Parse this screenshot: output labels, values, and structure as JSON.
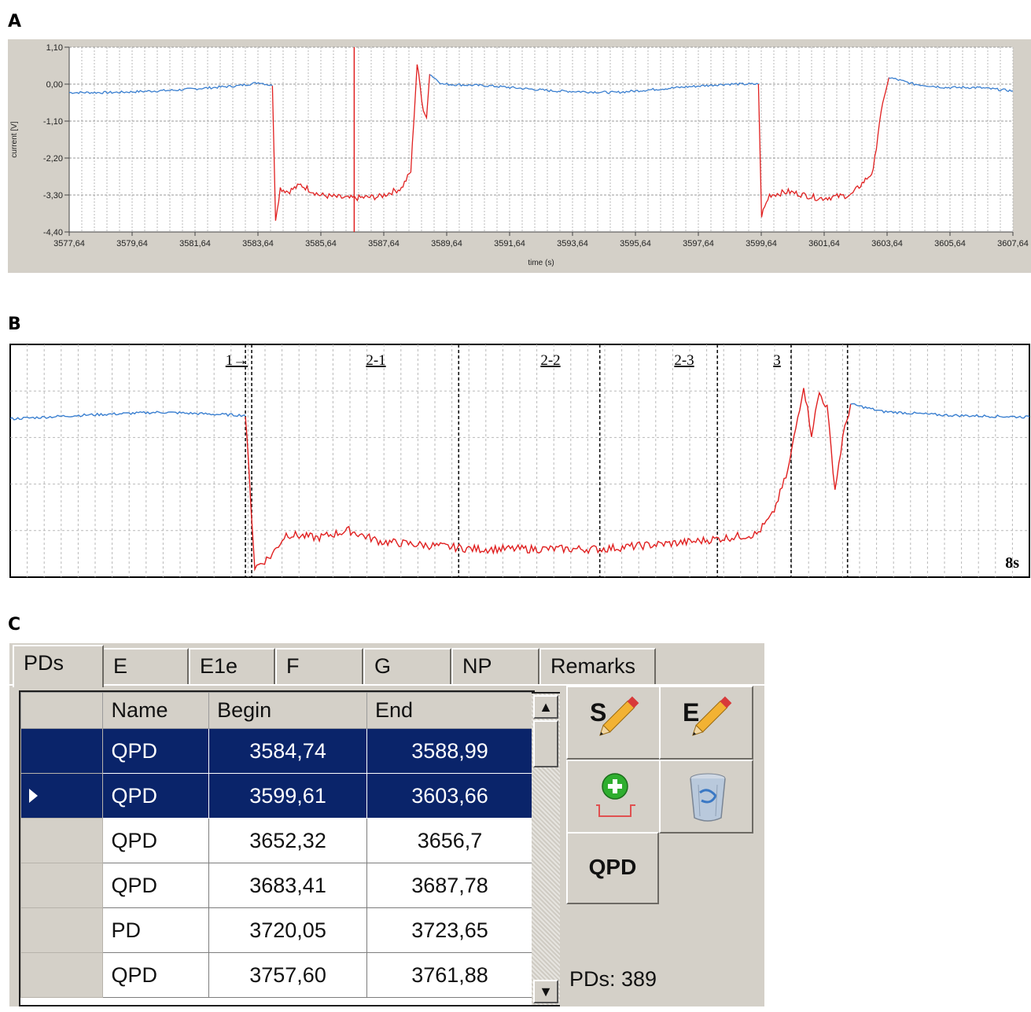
{
  "panel_labels": {
    "a": "A",
    "b": "B",
    "c": "C"
  },
  "chart_data": [
    {
      "type": "line",
      "panel": "A",
      "xlabel": "time (s)",
      "ylabel": "current [V]",
      "xlim": [
        3577.64,
        3607.64
      ],
      "ylim": [
        -4.4,
        1.1
      ],
      "x_ticks": [
        "3577,64",
        "3579,64",
        "3581,64",
        "3583,64",
        "3585,64",
        "3587,64",
        "3589,64",
        "3591,64",
        "3593,64",
        "3595,64",
        "3597,64",
        "3599,64",
        "3601,64",
        "3603,64",
        "3605,64",
        "3607,64"
      ],
      "y_ticks": [
        "1,10",
        "0,00",
        "-1,10",
        "-2,20",
        "-3,30",
        "-4,40"
      ],
      "grid": true,
      "colors": {
        "baseline": "#3a7fd0",
        "pd": "#e02020",
        "marker": "#e02020"
      },
      "marker_x": 3586.7,
      "series": [
        {
          "color": "baseline",
          "points": [
            [
              3577.64,
              -0.25
            ],
            [
              3579,
              -0.25
            ],
            [
              3581,
              -0.18
            ],
            [
              3583,
              -0.05
            ],
            [
              3583.7,
              0.05
            ],
            [
              3584.1,
              -0.05
            ]
          ]
        },
        {
          "color": "pd",
          "points": [
            [
              3584.1,
              -0.05
            ],
            [
              3584.2,
              -4.0
            ],
            [
              3584.35,
              -3.1
            ],
            [
              3584.6,
              -3.2
            ],
            [
              3585,
              -3.0
            ],
            [
              3585.6,
              -3.3
            ],
            [
              3586.5,
              -3.4
            ],
            [
              3587.5,
              -3.35
            ],
            [
              3588.2,
              -3.1
            ],
            [
              3588.5,
              -2.6
            ],
            [
              3588.7,
              0.6
            ],
            [
              3588.9,
              -0.8
            ],
            [
              3589.0,
              -1.0
            ],
            [
              3589.1,
              0.3
            ]
          ]
        },
        {
          "color": "baseline",
          "points": [
            [
              3589.1,
              0.3
            ],
            [
              3589.5,
              0.0
            ],
            [
              3591,
              -0.05
            ],
            [
              3593,
              -0.2
            ],
            [
              3595,
              -0.25
            ],
            [
              3597,
              -0.1
            ],
            [
              3598.5,
              0.0
            ],
            [
              3599.55,
              0.0
            ]
          ]
        },
        {
          "color": "pd",
          "points": [
            [
              3599.55,
              0.0
            ],
            [
              3599.65,
              -3.9
            ],
            [
              3599.9,
              -3.3
            ],
            [
              3600.5,
              -3.2
            ],
            [
              3601.5,
              -3.4
            ],
            [
              3602.5,
              -3.3
            ],
            [
              3603.2,
              -2.6
            ],
            [
              3603.4,
              -1.1
            ],
            [
              3603.6,
              -0.2
            ],
            [
              3603.7,
              0.2
            ]
          ]
        },
        {
          "color": "baseline",
          "points": [
            [
              3603.7,
              0.2
            ],
            [
              3604.5,
              0.0
            ],
            [
              3605.5,
              -0.1
            ],
            [
              3606.5,
              -0.1
            ],
            [
              3607.64,
              -0.2
            ]
          ]
        }
      ]
    },
    {
      "type": "line",
      "panel": "B",
      "segments": [
        {
          "label": "1→",
          "x": 3584.74
        },
        {
          "label": "2-1",
          "x": 3585.1
        },
        {
          "label": "2-2",
          "x": 3586.5
        },
        {
          "label": "2-3",
          "x": 3587.4
        },
        {
          "label": "3",
          "x": 3588.25
        }
      ],
      "scale_label": "8s",
      "xlim": [
        3583.24,
        3589.74
      ],
      "ylim": [
        -4.4,
        1.1
      ],
      "grid": true,
      "colors": {
        "baseline": "#3a7fd0",
        "pd": "#e02020"
      },
      "boundaries_x": [
        3584.74,
        3584.78,
        3586.1,
        3587.0,
        3587.75,
        3588.22,
        3588.58
      ],
      "series": [
        {
          "color": "baseline",
          "points": [
            [
              3583.24,
              -0.1
            ],
            [
              3583.7,
              0.0
            ],
            [
              3584.2,
              0.08
            ],
            [
              3584.7,
              0.0
            ],
            [
              3584.74,
              0.0
            ]
          ]
        },
        {
          "color": "pd",
          "points": [
            [
              3584.74,
              0.0
            ],
            [
              3584.8,
              -4.1
            ],
            [
              3584.9,
              -3.8
            ],
            [
              3585.0,
              -3.2
            ],
            [
              3585.2,
              -3.3
            ],
            [
              3585.4,
              -3.1
            ],
            [
              3585.6,
              -3.4
            ],
            [
              3585.9,
              -3.5
            ],
            [
              3586.2,
              -3.6
            ],
            [
              3586.6,
              -3.6
            ],
            [
              3587.0,
              -3.6
            ],
            [
              3587.3,
              -3.5
            ],
            [
              3587.6,
              -3.4
            ],
            [
              3588.0,
              -3.2
            ],
            [
              3588.1,
              -2.7
            ],
            [
              3588.2,
              -1.5
            ],
            [
              3588.3,
              0.8
            ],
            [
              3588.35,
              -0.5
            ],
            [
              3588.4,
              0.6
            ],
            [
              3588.45,
              0.2
            ],
            [
              3588.5,
              -2.0
            ],
            [
              3588.55,
              -0.6
            ],
            [
              3588.6,
              0.3
            ]
          ]
        },
        {
          "color": "baseline",
          "points": [
            [
              3588.6,
              0.3
            ],
            [
              3588.8,
              0.1
            ],
            [
              3589.2,
              0.0
            ],
            [
              3589.74,
              -0.05
            ]
          ]
        }
      ]
    },
    {
      "type": "table",
      "panel": "C",
      "tabs": [
        "PDs",
        "E",
        "E1e",
        "F",
        "G",
        "NP",
        "Remarks"
      ],
      "active_tab": "PDs",
      "columns": [
        "Name",
        "Begin",
        "End"
      ],
      "rows": [
        {
          "name": "QPD",
          "begin": "3584,74",
          "end": "3588,99",
          "selected": true,
          "current": false
        },
        {
          "name": "QPD",
          "begin": "3599,61",
          "end": "3603,66",
          "selected": true,
          "current": true
        },
        {
          "name": "QPD",
          "begin": "3652,32",
          "end": "3656,7",
          "selected": false,
          "current": false
        },
        {
          "name": "QPD",
          "begin": "3683,41",
          "end": "3687,78",
          "selected": false,
          "current": false
        },
        {
          "name": "PD",
          "begin": "3720,05",
          "end": "3723,65",
          "selected": false,
          "current": false
        },
        {
          "name": "QPD",
          "begin": "3757,60",
          "end": "3761,88",
          "selected": false,
          "current": false
        }
      ],
      "tools": {
        "start_label": "S",
        "end_label": "E",
        "add_icon": "add-pd-icon",
        "delete_icon": "trash-icon"
      },
      "qpd_button": "QPD",
      "pd_count": "PDs: 389"
    }
  ]
}
